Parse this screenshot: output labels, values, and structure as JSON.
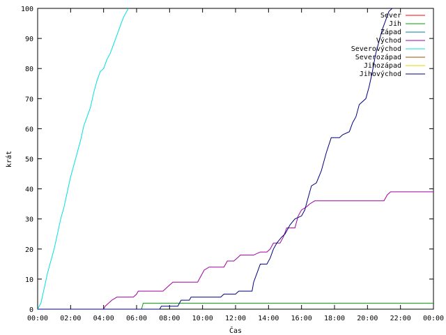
{
  "chart_data": {
    "type": "line",
    "title": "",
    "xlabel": "Čas",
    "ylabel": "krát",
    "xlim": [
      0,
      24
    ],
    "ylim": [
      0,
      100
    ],
    "x_tick_labels": [
      "00:00",
      "02:00",
      "04:00",
      "06:00",
      "08:00",
      "10:00",
      "12:00",
      "14:00",
      "16:00",
      "18:00",
      "20:00",
      "22:00",
      "00:00"
    ],
    "y_tick_labels": [
      "0",
      "10",
      "20",
      "30",
      "40",
      "50",
      "60",
      "70",
      "80",
      "90",
      "100"
    ],
    "x_unit": "hours",
    "grid": false,
    "legend_position": "top-right",
    "series": [
      {
        "name": "Sever",
        "color": "#ff0000",
        "points": []
      },
      {
        "name": "Jih",
        "color": "#00a000",
        "points": [
          [
            0,
            0
          ],
          [
            6.3,
            0
          ],
          [
            6.35,
            1
          ],
          [
            6.4,
            2
          ],
          [
            24,
            2
          ]
        ]
      },
      {
        "name": "Západ",
        "color": "#0080a0",
        "points": []
      },
      {
        "name": "Východ",
        "color": "#a000a0",
        "points": [
          [
            0,
            0
          ],
          [
            4.0,
            0
          ],
          [
            4.1,
            1
          ],
          [
            4.3,
            2
          ],
          [
            4.5,
            3
          ],
          [
            4.8,
            4
          ],
          [
            5.8,
            4
          ],
          [
            6.0,
            5
          ],
          [
            6.1,
            6
          ],
          [
            7.6,
            6
          ],
          [
            7.8,
            7
          ],
          [
            8.0,
            8
          ],
          [
            8.2,
            9
          ],
          [
            9.7,
            9
          ],
          [
            9.9,
            11
          ],
          [
            10.1,
            13
          ],
          [
            10.4,
            14
          ],
          [
            11.3,
            14
          ],
          [
            11.5,
            16
          ],
          [
            11.9,
            16
          ],
          [
            12.1,
            17
          ],
          [
            12.3,
            18
          ],
          [
            13.1,
            18
          ],
          [
            13.5,
            19
          ],
          [
            13.9,
            19
          ],
          [
            14.1,
            20
          ],
          [
            14.3,
            22
          ],
          [
            14.7,
            22
          ],
          [
            14.9,
            24
          ],
          [
            15.1,
            27
          ],
          [
            15.6,
            27
          ],
          [
            15.8,
            31
          ],
          [
            16.0,
            33
          ],
          [
            16.3,
            34
          ],
          [
            16.5,
            35
          ],
          [
            16.8,
            36
          ],
          [
            21.0,
            36
          ],
          [
            21.2,
            38
          ],
          [
            21.4,
            39
          ],
          [
            24,
            39
          ]
        ]
      },
      {
        "name": "Severovýchod",
        "color": "#00e0e0",
        "points": [
          [
            0,
            0
          ],
          [
            0.2,
            2
          ],
          [
            0.4,
            7
          ],
          [
            0.6,
            12
          ],
          [
            0.8,
            16
          ],
          [
            1.0,
            20
          ],
          [
            1.2,
            25
          ],
          [
            1.4,
            30
          ],
          [
            1.6,
            34
          ],
          [
            1.8,
            39
          ],
          [
            2.0,
            44
          ],
          [
            2.2,
            48
          ],
          [
            2.4,
            52
          ],
          [
            2.6,
            56
          ],
          [
            2.8,
            61
          ],
          [
            3.0,
            64
          ],
          [
            3.2,
            67
          ],
          [
            3.4,
            72
          ],
          [
            3.6,
            76
          ],
          [
            3.8,
            79
          ],
          [
            4.0,
            80
          ],
          [
            4.2,
            83
          ],
          [
            4.4,
            85
          ],
          [
            4.6,
            88
          ],
          [
            4.8,
            91
          ],
          [
            5.0,
            94
          ],
          [
            5.2,
            97
          ],
          [
            5.5,
            100
          ]
        ]
      },
      {
        "name": "Severozápad",
        "color": "#a05000",
        "points": []
      },
      {
        "name": "Jihozápad",
        "color": "#d8d800",
        "points": []
      },
      {
        "name": "Jihovýchod",
        "color": "#000080",
        "points": [
          [
            0,
            0
          ],
          [
            7.4,
            0
          ],
          [
            7.5,
            1
          ],
          [
            8.5,
            1
          ],
          [
            8.6,
            2
          ],
          [
            8.7,
            3
          ],
          [
            9.2,
            3
          ],
          [
            9.3,
            4
          ],
          [
            11.1,
            4
          ],
          [
            11.3,
            5
          ],
          [
            12.0,
            5
          ],
          [
            12.2,
            6
          ],
          [
            13.0,
            6
          ],
          [
            13.1,
            9
          ],
          [
            13.3,
            12
          ],
          [
            13.5,
            15
          ],
          [
            13.9,
            15
          ],
          [
            14.1,
            17
          ],
          [
            14.3,
            20
          ],
          [
            14.5,
            22
          ],
          [
            14.8,
            24
          ],
          [
            15.0,
            25
          ],
          [
            15.3,
            28
          ],
          [
            15.6,
            30
          ],
          [
            16.0,
            31
          ],
          [
            16.2,
            33
          ],
          [
            16.4,
            37
          ],
          [
            16.6,
            41
          ],
          [
            16.9,
            42
          ],
          [
            17.2,
            46
          ],
          [
            17.5,
            52
          ],
          [
            17.8,
            57
          ],
          [
            18.3,
            57
          ],
          [
            18.5,
            58
          ],
          [
            18.9,
            59
          ],
          [
            19.1,
            62
          ],
          [
            19.3,
            64
          ],
          [
            19.5,
            68
          ],
          [
            19.9,
            70
          ],
          [
            20.1,
            74
          ],
          [
            20.3,
            79
          ],
          [
            20.5,
            85
          ],
          [
            20.7,
            89
          ],
          [
            20.9,
            93
          ],
          [
            21.1,
            96
          ],
          [
            21.3,
            99
          ],
          [
            21.5,
            100
          ]
        ]
      }
    ]
  }
}
